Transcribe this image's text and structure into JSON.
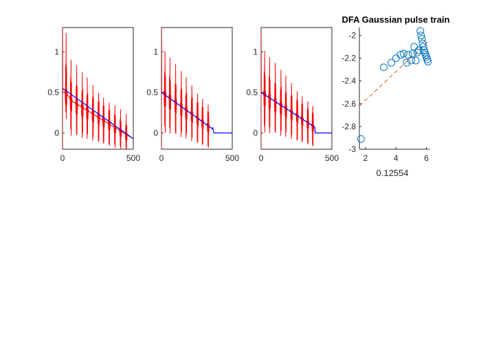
{
  "chart_data": [
    {
      "type": "line",
      "xlim": [
        0,
        500
      ],
      "ylim": [
        -0.2,
        1.3
      ],
      "xticks": [
        0,
        500
      ],
      "yticks": [
        0,
        0.5,
        1
      ],
      "xtick_labels": [
        "0",
        "500"
      ],
      "ytick_labels": [
        "0",
        "0.5",
        "1"
      ],
      "pulse_positions": [
        25,
        60,
        100,
        140,
        175,
        215,
        255,
        290,
        330,
        370,
        410,
        450
      ],
      "series": [
        {
          "color": "#ff0000",
          "x": [
            0,
            20,
            25,
            30,
            45,
            60,
            480
          ],
          "y": [
            0.5,
            0.5,
            0.7,
            0.48,
            0.45,
            0.4,
            -0.05
          ]
        },
        {
          "color": "#0000ff",
          "x": [
            0,
            500
          ],
          "y": [
            0.55,
            -0.07
          ]
        }
      ]
    },
    {
      "type": "line",
      "xlim": [
        0,
        500
      ],
      "ylim": [
        -0.2,
        1.3
      ],
      "xticks": [
        0,
        500
      ],
      "yticks": [
        0,
        0.5,
        1
      ],
      "xtick_labels": [
        "0",
        "500"
      ],
      "ytick_labels": [
        "0",
        "0.5",
        "1"
      ],
      "pulse_positions": [
        25,
        60,
        100,
        140,
        175,
        215,
        255,
        290,
        330
      ],
      "series": [
        {
          "color": "#ff0000",
          "x": [
            0,
            360
          ],
          "y": [
            0.5,
            0.05
          ]
        },
        {
          "color": "#0000ff",
          "x": [
            0,
            360,
            362,
            370,
            500
          ],
          "y": [
            0.5,
            0.05,
            0.07,
            0.0,
            0.0
          ]
        }
      ]
    },
    {
      "type": "line",
      "xlim": [
        0,
        500
      ],
      "ylim": [
        -0.2,
        1.3
      ],
      "xticks": [
        0,
        500
      ],
      "yticks": [
        0,
        0.5,
        1
      ],
      "xtick_labels": [
        "0",
        "500"
      ],
      "ytick_labels": [
        "0",
        "0.5",
        "1"
      ],
      "pulse_positions": [
        25,
        60,
        100,
        140,
        175,
        215,
        255,
        290,
        330,
        365
      ],
      "series": [
        {
          "color": "#ff0000",
          "x": [
            0,
            380
          ],
          "y": [
            0.5,
            0.07
          ]
        },
        {
          "color": "#0000ff",
          "x": [
            0,
            380,
            382,
            500
          ],
          "y": [
            0.5,
            0.07,
            0.0,
            0.0
          ]
        }
      ]
    },
    {
      "type": "scatter",
      "title": "DFA Gaussian pulse train",
      "xlabel": "0.12554",
      "xlim": [
        1.6,
        6.2
      ],
      "ylim": [
        -3.0,
        -1.93
      ],
      "xticks": [
        2,
        4,
        6
      ],
      "yticks": [
        -3,
        -2.8,
        -2.6,
        -2.4,
        -2.2,
        -2
      ],
      "xtick_labels": [
        "2",
        "4",
        "6"
      ],
      "ytick_labels": [
        "-3",
        "-2.8",
        "-2.6",
        "-2.4",
        "-2.2",
        "-2"
      ],
      "marker_color": "#0072bd",
      "fit_color": "#d95319",
      "fit_line": {
        "x": [
          1.6,
          6.2
        ],
        "y": [
          -2.62,
          -2.04
        ]
      },
      "points": [
        [
          1.7,
          -2.91
        ],
        [
          3.2,
          -2.28
        ],
        [
          3.7,
          -2.24
        ],
        [
          4.0,
          -2.2
        ],
        [
          4.3,
          -2.17
        ],
        [
          4.5,
          -2.16
        ],
        [
          4.7,
          -2.24
        ],
        [
          4.8,
          -2.17
        ],
        [
          5.0,
          -2.22
        ],
        [
          5.1,
          -2.16
        ],
        [
          5.2,
          -2.1
        ],
        [
          5.3,
          -2.22
        ],
        [
          5.4,
          -2.15
        ],
        [
          5.5,
          -2.13
        ],
        [
          5.6,
          -1.96
        ],
        [
          5.65,
          -2.0
        ],
        [
          5.7,
          -2.03
        ],
        [
          5.75,
          -2.07
        ],
        [
          5.8,
          -2.1
        ],
        [
          5.85,
          -2.13
        ],
        [
          5.9,
          -2.15
        ],
        [
          5.95,
          -2.17
        ],
        [
          6.0,
          -2.19
        ],
        [
          6.05,
          -2.21
        ],
        [
          6.1,
          -2.23
        ]
      ]
    }
  ]
}
